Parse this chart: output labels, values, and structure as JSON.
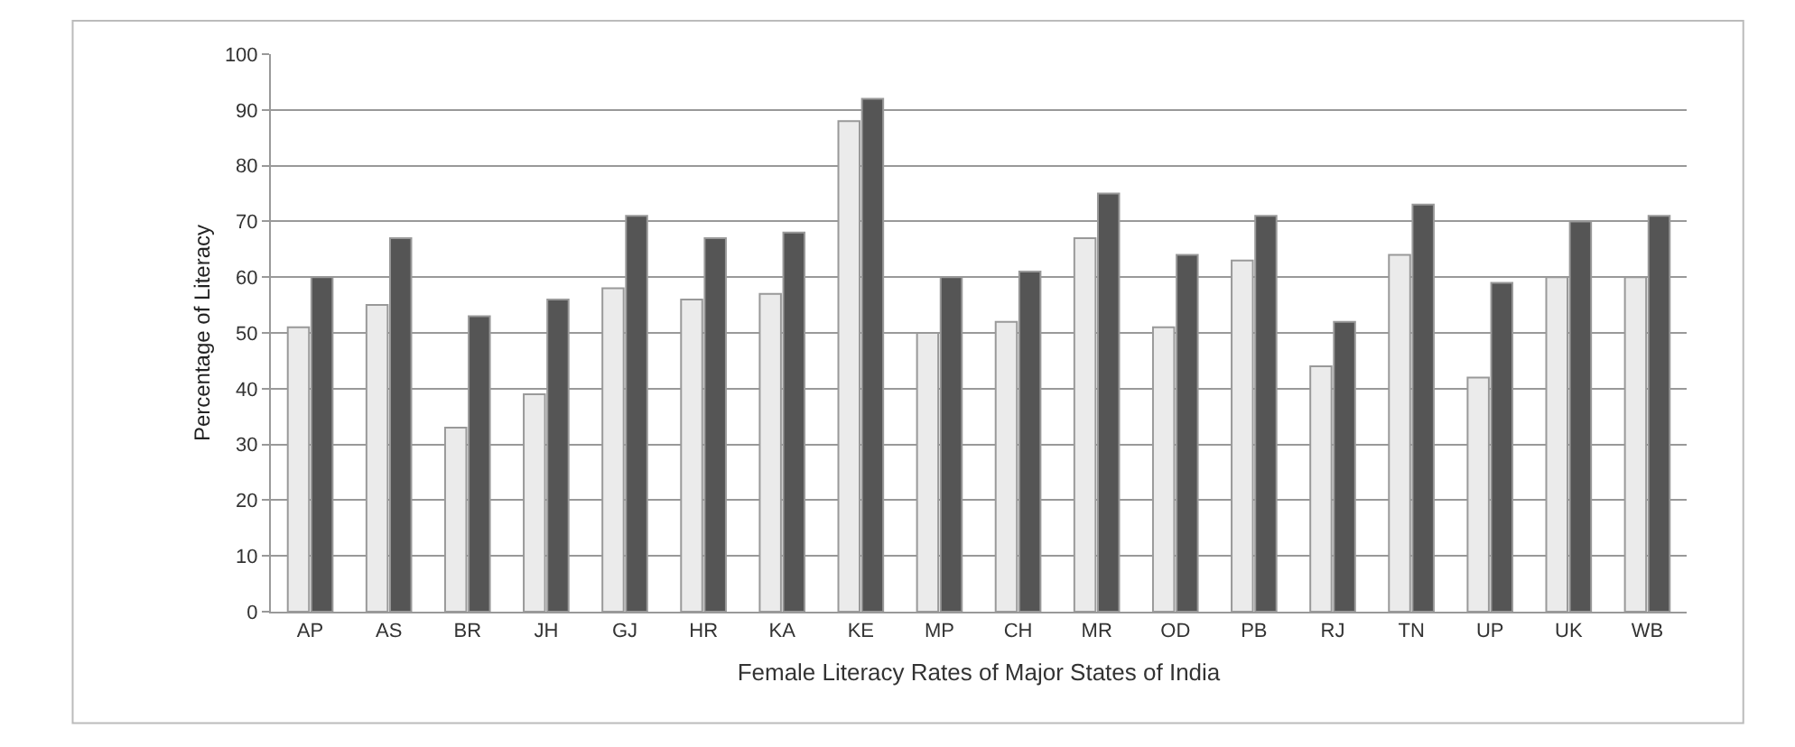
{
  "chart_data": {
    "type": "bar",
    "xlabel": "Female Literacy Rates of Major States of India",
    "ylabel": "Percentage of Literacy",
    "categories": [
      "AP",
      "AS",
      "BR",
      "JH",
      "GJ",
      "HR",
      "KA",
      "KE",
      "MP",
      "CH",
      "MR",
      "OD",
      "PB",
      "RJ",
      "TN",
      "UP",
      "UK",
      "WB"
    ],
    "series": [
      {
        "color": "#ebebeb",
        "values": [
          51,
          55,
          33,
          39,
          58,
          56,
          57,
          88,
          50,
          52,
          67,
          51,
          63,
          44,
          64,
          42,
          60,
          60
        ]
      },
      {
        "color": "#555555",
        "values": [
          60,
          67,
          53,
          56,
          71,
          67,
          68,
          92,
          60,
          61,
          75,
          64,
          71,
          52,
          73,
          59,
          70,
          71
        ]
      }
    ],
    "ylim": [
      0,
      100
    ],
    "yticks": [
      0,
      10,
      20,
      30,
      40,
      50,
      60,
      70,
      80,
      90,
      100
    ],
    "grid": "y"
  }
}
